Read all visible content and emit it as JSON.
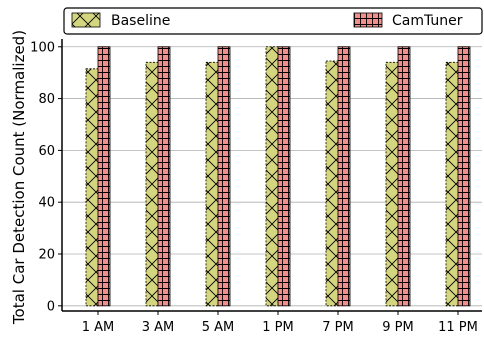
{
  "chart_data": {
    "type": "bar",
    "categories": [
      "1 AM",
      "3 AM",
      "5 AM",
      "1 PM",
      "7 PM",
      "9 PM",
      "11 PM"
    ],
    "series": [
      {
        "name": "Baseline",
        "values": [
          91.5,
          94,
          94,
          100,
          94.5,
          94,
          94
        ],
        "color": "#d4d67f",
        "pattern": "cross-hatch"
      },
      {
        "name": "CamTuner",
        "values": [
          100,
          100,
          100,
          100,
          100,
          100,
          100
        ],
        "color": "#f08f8c",
        "pattern": "grid"
      }
    ],
    "ylabel": "Total Car Detection Count (Normalized)",
    "xlabel": "",
    "yticks": [
      0,
      20,
      40,
      60,
      80,
      100
    ],
    "ylim": [
      -2,
      103
    ],
    "grid": "horizontal",
    "legend_position": "top"
  }
}
